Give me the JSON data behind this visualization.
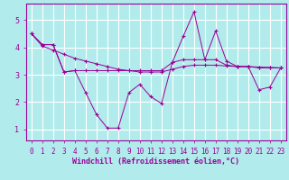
{
  "xlabel": "Windchill (Refroidissement éolien,°C)",
  "bg_color": "#b2ebeb",
  "plot_bg": "#b2ebeb",
  "grid_color": "#ffffff",
  "line_color": "#990099",
  "spine_color": "#990099",
  "x_ticks": [
    0,
    1,
    2,
    3,
    4,
    5,
    6,
    7,
    8,
    9,
    10,
    11,
    12,
    13,
    14,
    15,
    16,
    17,
    18,
    19,
    20,
    21,
    22,
    23
  ],
  "y_ticks": [
    1,
    2,
    3,
    4,
    5
  ],
  "ylim": [
    0.6,
    5.6
  ],
  "xlim": [
    -0.5,
    23.5
  ],
  "line1_y": [
    4.5,
    4.1,
    4.1,
    3.1,
    3.15,
    2.35,
    1.55,
    1.05,
    1.05,
    2.35,
    2.65,
    2.2,
    1.95,
    3.45,
    4.4,
    5.3,
    3.55,
    4.6,
    3.5,
    3.3,
    3.3,
    2.45,
    2.55,
    3.25
  ],
  "line2_y": [
    4.5,
    4.1,
    4.1,
    3.1,
    3.15,
    3.15,
    3.15,
    3.15,
    3.15,
    3.15,
    3.15,
    3.15,
    3.15,
    3.45,
    3.55,
    3.55,
    3.55,
    3.55,
    3.35,
    3.3,
    3.3,
    3.25,
    3.25,
    3.25
  ],
  "line3_y": [
    4.5,
    4.05,
    3.9,
    3.75,
    3.6,
    3.5,
    3.4,
    3.3,
    3.2,
    3.15,
    3.1,
    3.1,
    3.1,
    3.2,
    3.3,
    3.35,
    3.35,
    3.35,
    3.32,
    3.3,
    3.3,
    3.28,
    3.27,
    3.25
  ],
  "tick_fontsize": 5.5,
  "xlabel_fontsize": 6.0,
  "lw": 0.7,
  "ms": 3.0
}
